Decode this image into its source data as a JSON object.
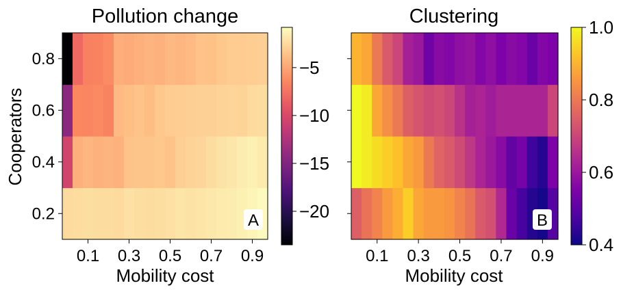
{
  "chart_data": [
    {
      "type": "heatmap",
      "title": "Pollution change",
      "xlabel": "Mobility cost",
      "ylabel": "Cooperators",
      "x_tick_labels": [
        "0.1",
        "0.3",
        "0.5",
        "0.7",
        "0.9"
      ],
      "x_tick_values": [
        0.1,
        0.3,
        0.5,
        0.7,
        0.9
      ],
      "y_tick_labels": [
        "0.2",
        "0.4",
        "0.6",
        "0.8"
      ],
      "y_tick_values": [
        0.2,
        0.4,
        0.6,
        0.8
      ],
      "x": [
        0.0,
        0.05,
        0.1,
        0.15,
        0.2,
        0.25,
        0.3,
        0.35,
        0.4,
        0.45,
        0.5,
        0.55,
        0.6,
        0.65,
        0.7,
        0.75,
        0.8,
        0.85,
        0.9,
        0.95
      ],
      "y": [
        0.2,
        0.4,
        0.6,
        0.8
      ],
      "values": [
        [
          -2.5,
          -2.4,
          -2.3,
          -2.4,
          -2.4,
          -2.5,
          -2.2,
          -2.3,
          -2.4,
          -2.3,
          -2.2,
          -2.0,
          -2.1,
          -2.0,
          -1.8,
          -1.7,
          -1.6,
          -1.4,
          -1.2,
          -0.9
        ],
        [
          -10.5,
          -4.5,
          -4.2,
          -4.4,
          -4.3,
          -4.4,
          -3.6,
          -3.5,
          -3.5,
          -3.4,
          -3.6,
          -3.0,
          -2.8,
          -2.7,
          -2.4,
          -2.1,
          -1.9,
          -1.6,
          -1.4,
          -1.7
        ],
        [
          -14.5,
          -6.5,
          -6.6,
          -6.4,
          -6.7,
          -4.0,
          -3.8,
          -3.6,
          -3.9,
          -3.4,
          -3.2,
          -3.1,
          -3.0,
          -2.9,
          -2.9,
          -2.8,
          -2.7,
          -2.8,
          -2.5,
          -2.4
        ],
        [
          -23.5,
          -8.0,
          -6.8,
          -6.7,
          -6.3,
          -4.6,
          -4.7,
          -4.5,
          -4.3,
          -4.4,
          -4.1,
          -4.2,
          -4.0,
          -3.6,
          -3.7,
          -3.4,
          -3.2,
          -3.2,
          -3.1,
          -3.0
        ]
      ],
      "colormap": "magma",
      "colorbar": {
        "ticks": [
          -5,
          -10,
          -15,
          -20
        ],
        "tick_labels": [
          "−5",
          "−10",
          "−15",
          "−20"
        ],
        "vmin": -23.5,
        "vmax": -0.8
      },
      "panel_label": "A"
    },
    {
      "type": "heatmap",
      "title": "Clustering",
      "xlabel": "Mobility cost",
      "ylabel": "",
      "x_tick_labels": [
        "0.1",
        "0.3",
        "0.5",
        "0.7",
        "0.9"
      ],
      "x_tick_values": [
        0.1,
        0.3,
        0.5,
        0.7,
        0.9
      ],
      "x": [
        0.0,
        0.05,
        0.1,
        0.15,
        0.2,
        0.25,
        0.3,
        0.35,
        0.4,
        0.45,
        0.5,
        0.55,
        0.6,
        0.65,
        0.7,
        0.75,
        0.8,
        0.85,
        0.9,
        0.95
      ],
      "y": [
        0.2,
        0.4,
        0.6,
        0.8
      ],
      "values": [
        [
          0.75,
          0.79,
          0.82,
          0.86,
          0.89,
          0.94,
          0.88,
          0.86,
          0.86,
          0.85,
          0.82,
          0.79,
          0.74,
          0.72,
          0.64,
          0.52,
          0.47,
          0.43,
          0.41,
          0.49
        ],
        [
          1.0,
          0.98,
          0.96,
          0.94,
          0.92,
          0.88,
          0.86,
          0.8,
          0.76,
          0.74,
          0.71,
          0.67,
          0.63,
          0.6,
          0.57,
          0.51,
          0.54,
          0.46,
          0.43,
          0.55
        ],
        [
          1.0,
          0.98,
          0.88,
          0.84,
          0.8,
          0.75,
          0.73,
          0.71,
          0.72,
          0.7,
          0.66,
          0.62,
          0.63,
          0.61,
          0.63,
          0.63,
          0.63,
          0.63,
          0.63,
          0.7
        ],
        [
          0.9,
          0.88,
          0.8,
          0.74,
          0.7,
          0.62,
          0.6,
          0.53,
          0.57,
          0.56,
          0.58,
          0.59,
          0.56,
          0.58,
          0.55,
          0.57,
          0.56,
          0.52,
          0.56,
          0.55
        ]
      ],
      "colormap": "plasma",
      "colorbar": {
        "ticks": [
          1.0,
          0.8,
          0.6,
          0.4
        ],
        "tick_labels": [
          "1.0",
          "0.8",
          "0.6",
          "0.4"
        ],
        "vmin": 0.4,
        "vmax": 1.0
      },
      "panel_label": "B"
    }
  ]
}
